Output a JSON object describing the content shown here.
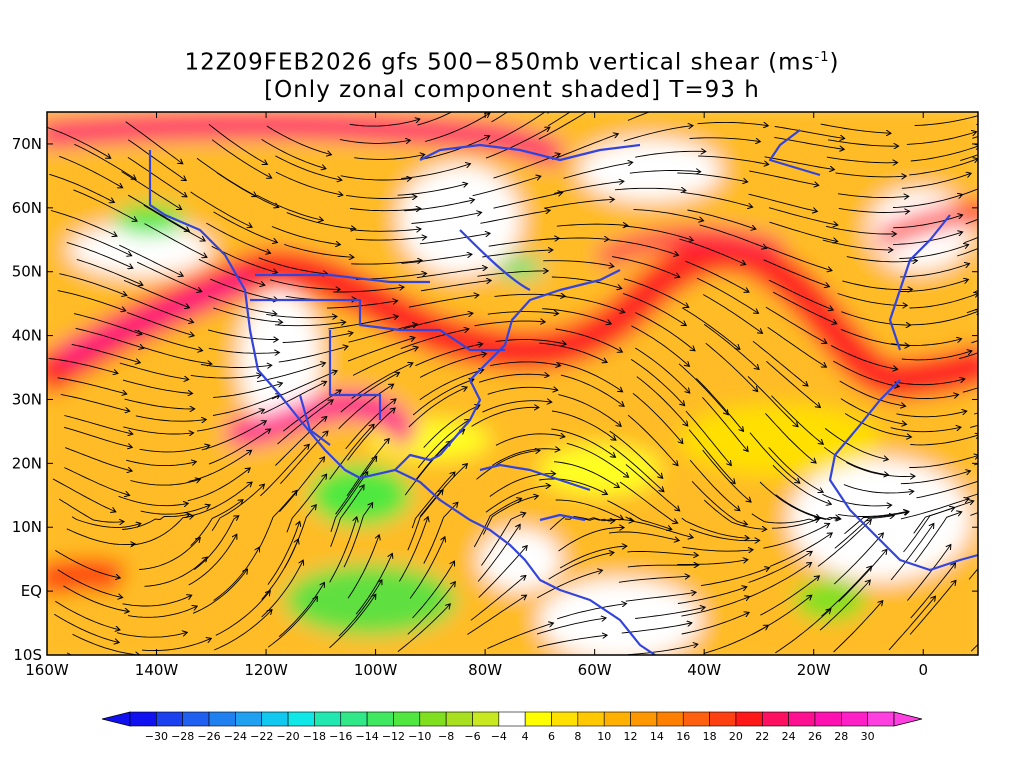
{
  "title": {
    "line1_prefix": "12Z09FEB2026 gfs 500−850mb vertical shear (ms",
    "line1_sup": "-1",
    "line1_suffix": ")",
    "line2": "[Only zonal component shaded] T=93 h"
  },
  "map": {
    "lon_range": [
      -160,
      10
    ],
    "lat_range": [
      -10,
      75
    ],
    "x_tick_labels": [
      "160W",
      "140W",
      "120W",
      "100W",
      "80W",
      "60W",
      "40W",
      "20W",
      "0"
    ],
    "x_tick_values": [
      -160,
      -140,
      -120,
      -100,
      -80,
      -60,
      -40,
      -20,
      0
    ],
    "y_tick_labels": [
      "10S",
      "EQ",
      "10N",
      "20N",
      "30N",
      "40N",
      "50N",
      "60N",
      "70N"
    ],
    "y_tick_values": [
      -10,
      0,
      10,
      20,
      30,
      40,
      50,
      60,
      70
    ],
    "coastline_color": "#3344dd"
  },
  "colorbar": {
    "labels": [
      "-30",
      "-28",
      "-26",
      "-24",
      "-22",
      "-20",
      "-18",
      "-16",
      "-14",
      "-12",
      "-10",
      "-8",
      "-6",
      "-4",
      "4",
      "6",
      "8",
      "10",
      "12",
      "14",
      "16",
      "18",
      "20",
      "22",
      "24",
      "26",
      "28",
      "30"
    ],
    "colors": [
      "#1010f0",
      "#1a40f0",
      "#2060f0",
      "#2080f0",
      "#20a0f0",
      "#10c8f0",
      "#10e8e8",
      "#20e8b0",
      "#30e888",
      "#40e860",
      "#50e840",
      "#80e020",
      "#a8e020",
      "#c8e820",
      "#ffffff",
      "#ffff00",
      "#ffe000",
      "#ffc800",
      "#ffb000",
      "#ff9800",
      "#ff8000",
      "#ff6010",
      "#ff4010",
      "#ff1818",
      "#ff1060",
      "#ff1090",
      "#ff10b0",
      "#ff20c8",
      "#ff40e0"
    ],
    "arrow_left_color": "#1010f0",
    "arrow_right_color": "#ff40e0"
  }
}
